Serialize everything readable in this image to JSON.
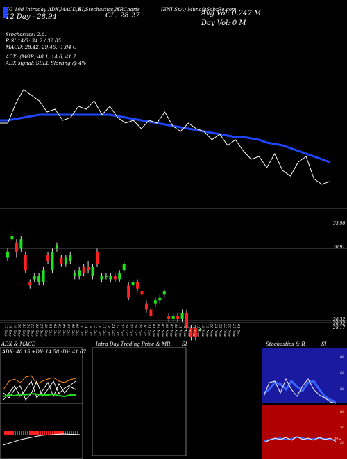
{
  "header": {
    "line1_left": "EG 10d  Intraday ADX,MACD,B",
    "line1_mid": "SI,Stochastics,MR",
    "line1_mid2": "SI Charts",
    "line1_right": "(ENI SpA) MunafaSabrRe.com",
    "line2_left": "12  Day - 28.94",
    "cl_label": "CL: 28.27",
    "avg_vol": "Avg Vol: 0.247 M",
    "day_vol": "Day Vol: 0   M"
  },
  "indicators": {
    "stoch": "Stochastics: 2.61",
    "rsi": "R          SI 14/5: 34.2  / 32.85",
    "macd": "MACD: 28.42, 29.46, -1.04  C",
    "adx": "ADX:                   (MGR) 48.1, 14.6, 41.7",
    "adx_signal": "ADX  signal: SELL  Slowing @ 4%"
  },
  "price_axis": {
    "p1": "33.98",
    "p2": "30.91",
    "p3": "28.32",
    "p4": "28.32",
    "p5": "28.17"
  },
  "dates": [
    "17 Sep",
    "18 Sep",
    "19 Sep",
    "20 Sep",
    "23 Sep",
    "24 Sep",
    "25 Sep",
    "26 Sep",
    "27 Sep",
    "30 Sep",
    "01 Oct",
    "02 Oct",
    "03 Oct",
    "04 Oct",
    "07 Oct",
    "08 Oct",
    "09 Oct",
    "10 Oct",
    "11 Oct",
    "14 Oct",
    "15 Oct",
    "16 Oct",
    "17 Oct",
    "18 Oct",
    "21 Oct",
    "22 Oct",
    "23 Oct",
    "24 Oct",
    "25 Oct",
    "28 Oct",
    "29 Oct",
    "30 Oct",
    "31 Oct",
    "01 Nov",
    "04 Nov",
    "05 Nov",
    "06 Nov",
    "07 Nov",
    "08 Nov",
    "11 Nov",
    "12 Nov",
    "13 Nov",
    "14 Nov",
    "15 Nov",
    "18 Nov",
    "19 Nov",
    "20 Nov",
    "21 Nov",
    "22 Nov",
    "25 Nov",
    "26 Nov",
    "27 Nov",
    "01 Dec"
  ],
  "panels": {
    "adx_title": "ADX  & MACD",
    "adx_values": "ADX: 48.15  +DY: 14.58  -DY: 41.67",
    "intraday_title": "Intra  Day Trading Price  & MR",
    "intraday_si": "SI",
    "stoch_title": "Stochastics & R",
    "stoch_si": "SI",
    "stoch_ticks": [
      "80",
      "50",
      "20"
    ],
    "rsi_ticks": [
      "80",
      "50",
      "20",
      "34.2"
    ]
  },
  "colors": {
    "up": "#1ee01e",
    "down": "#ff2020",
    "ma_line": "#1e46ff",
    "price_line": "#ffffff",
    "red_panel": "#b00000",
    "blue_panel": "#1a1aa0"
  },
  "chart_data": [
    {
      "type": "line",
      "series": [
        {
          "values": [
            30.2,
            30.2,
            30.9,
            31.4,
            31.2,
            31.0,
            30.6,
            30.7,
            30.3,
            30.4,
            30.8,
            30.7,
            31.0,
            30.5,
            30.8,
            30.4,
            30.2,
            30.3,
            30.0,
            30.3,
            30.2,
            30.6,
            30.1,
            29.9,
            30.2,
            30.0,
            29.9,
            29.6,
            29.8,
            29.4,
            29.6,
            29.2,
            28.9,
            29.0,
            28.6,
            29.1,
            28.5,
            28.3,
            28.8,
            29.0,
            28.2,
            28.0,
            28.1
          ],
          "ma": [
            30.3,
            30.3,
            30.35,
            30.4,
            30.45,
            30.5,
            30.5,
            30.5,
            30.5,
            30.5,
            30.5,
            30.5,
            30.5,
            30.5,
            30.5,
            30.45,
            30.4,
            30.35,
            30.3,
            30.25,
            30.2,
            30.15,
            30.1,
            30.05,
            30.0,
            29.95,
            29.9,
            29.85,
            29.8,
            29.75,
            29.7,
            29.7,
            29.65,
            29.6,
            29.5,
            29.45,
            29.4,
            29.3,
            29.2,
            29.1,
            29.0,
            28.9,
            28.8
          ]
        }
      ]
    },
    {
      "type": "bar",
      "candles": [
        {
          "o": 30.6,
          "c": 30.8,
          "h": 30.9,
          "l": 30.5
        },
        {
          "o": 31.2,
          "c": 31.3,
          "h": 31.5,
          "l": 31.1
        },
        {
          "o": 31.1,
          "c": 30.8,
          "h": 31.2,
          "l": 30.6
        },
        {
          "o": 30.9,
          "c": 31.2,
          "h": 31.3,
          "l": 30.8
        },
        {
          "o": 30.7,
          "c": 30.2,
          "h": 30.8,
          "l": 30.1
        },
        {
          "o": 29.8,
          "c": 29.7,
          "h": 29.9,
          "l": 29.6
        },
        {
          "o": 29.9,
          "c": 30.0,
          "h": 30.1,
          "l": 29.8
        },
        {
          "o": 29.8,
          "c": 30.0,
          "h": 30.1,
          "l": 29.7
        },
        {
          "o": 29.8,
          "c": 30.2,
          "h": 30.3,
          "l": 29.7
        },
        {
          "o": 30.7,
          "c": 30.5,
          "h": 30.8,
          "l": 30.4
        },
        {
          "o": 30.2,
          "c": 30.8,
          "h": 30.9,
          "l": 30.1
        },
        {
          "o": 30.9,
          "c": 31.0,
          "h": 31.1,
          "l": 30.8
        },
        {
          "o": 30.6,
          "c": 30.4,
          "h": 30.7,
          "l": 30.3
        },
        {
          "o": 30.4,
          "c": 30.6,
          "h": 30.7,
          "l": 30.3
        },
        {
          "o": 30.5,
          "c": 30.7,
          "h": 30.8,
          "l": 30.4
        },
        {
          "o": 30.0,
          "c": 30.1,
          "h": 30.2,
          "l": 29.9
        },
        {
          "o": 30.0,
          "c": 30.2,
          "h": 30.3,
          "l": 29.9
        },
        {
          "o": 30.3,
          "c": 30.1,
          "h": 30.4,
          "l": 30.0
        },
        {
          "o": 30.3,
          "c": 30.2,
          "h": 30.5,
          "l": 30.1
        },
        {
          "o": 30.0,
          "c": 30.3,
          "h": 30.4,
          "l": 29.9
        },
        {
          "o": 30.8,
          "c": 30.4,
          "h": 30.9,
          "l": 30.3
        },
        {
          "o": 29.9,
          "c": 30.0,
          "h": 30.1,
          "l": 29.8
        },
        {
          "o": 30.0,
          "c": 30.0,
          "h": 30.1,
          "l": 29.9
        },
        {
          "o": 29.9,
          "c": 30.0,
          "h": 30.1,
          "l": 29.8
        },
        {
          "o": 30.0,
          "c": 29.9,
          "h": 30.1,
          "l": 29.8
        },
        {
          "o": 29.9,
          "c": 30.1,
          "h": 30.2,
          "l": 29.8
        },
        {
          "o": 30.2,
          "c": 30.4,
          "h": 30.5,
          "l": 30.1
        },
        {
          "o": 29.7,
          "c": 29.3,
          "h": 29.8,
          "l": 29.2
        },
        {
          "o": 29.7,
          "c": 29.8,
          "h": 29.9,
          "l": 29.6
        },
        {
          "o": 29.8,
          "c": 29.6,
          "h": 29.9,
          "l": 29.5
        },
        {
          "o": 29.5,
          "c": 29.4,
          "h": 29.6,
          "l": 29.3
        },
        {
          "o": 29.1,
          "c": 28.9,
          "h": 29.2,
          "l": 28.8
        },
        {
          "o": 28.9,
          "c": 28.7,
          "h": 29.0,
          "l": 28.6
        },
        {
          "o": 29.1,
          "c": 29.2,
          "h": 29.3,
          "l": 29.0
        },
        {
          "o": 29.2,
          "c": 29.3,
          "h": 29.4,
          "l": 29.1
        },
        {
          "o": 29.4,
          "c": 29.5,
          "h": 29.6,
          "l": 29.3
        },
        {
          "o": 28.7,
          "c": 28.6,
          "h": 28.8,
          "l": 28.5
        },
        {
          "o": 28.6,
          "c": 28.7,
          "h": 28.8,
          "l": 28.5
        },
        {
          "o": 28.7,
          "c": 28.6,
          "h": 28.8,
          "l": 28.5
        },
        {
          "o": 28.6,
          "c": 28.8,
          "h": 28.9,
          "l": 28.5
        },
        {
          "o": 28.8,
          "c": 28.3,
          "h": 28.9,
          "l": 28.2
        },
        {
          "o": 28.3,
          "c": 28.0,
          "h": 28.4,
          "l": 27.9
        },
        {
          "o": 28.3,
          "c": 28.0,
          "h": 28.4,
          "l": 27.9
        },
        {
          "o": 28.25,
          "c": 28.27,
          "h": 28.3,
          "l": 28.2
        }
      ]
    }
  ]
}
